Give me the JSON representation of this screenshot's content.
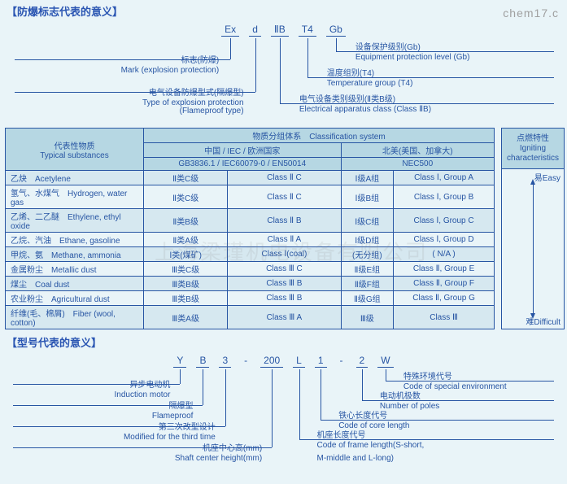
{
  "site_watermark": "chem17.c",
  "body_watermark": "上海梁瑾机电设备有限公司",
  "section1_title": "防爆标志代表的意义",
  "explosion": {
    "codes": [
      "Ex",
      "d",
      "ⅡB",
      "T4",
      "Gb"
    ],
    "left": [
      {
        "cn": "标志(防爆)",
        "en": "Mark (explosion protection)"
      },
      {
        "cn": "电气设备防爆型式(隔爆型)",
        "en": "Type of explosion protection"
      },
      {
        "cn": "",
        "en": "(Flameproof type)"
      }
    ],
    "right": [
      {
        "cn": "设备保护级别(Gb)",
        "en": "Equipment protection level (Gb)"
      },
      {
        "cn": "温度组别(T4)",
        "en": "Temperature group (T4)"
      },
      {
        "cn": "电气设备类别级别(Ⅱ类B级)",
        "en": "Electrical apparatus class (Class ⅡB)"
      }
    ]
  },
  "table": {
    "col_subst_cn": "代表性物质",
    "col_subst_en": "Typical substances",
    "col_class_cn": "物质分组体系",
    "col_class_en": "Classification system",
    "col_cn_iec_a": "中国 / IEC / 欧洲国家",
    "col_cn_iec_b": "GB3836.1 / IEC60079-0 / EN50014",
    "col_na_a": "北美(美国、加拿大)",
    "col_na_b": "NEC500",
    "col_ign_cn": "点燃特性",
    "col_ign_en": "Igniting",
    "col_ign_en2": "characteristics",
    "ign_easy": "易Easy",
    "ign_hard": "难Difficult",
    "rows": [
      {
        "cn": "乙炔",
        "en": "Acetylene",
        "c1": "Ⅱ类C级",
        "c2": "Class Ⅱ C",
        "n1": "Ⅰ级A组",
        "n2": "Class Ⅰ, Group A",
        "hi": 1
      },
      {
        "cn": "氢气、水煤气",
        "en": "Hydrogen, water gas",
        "c1": "Ⅱ类C级",
        "c2": "Class Ⅱ C",
        "n1": "Ⅰ级B组",
        "n2": "Class Ⅰ, Group B",
        "hi": 0
      },
      {
        "cn": "乙烯、二乙醚",
        "en": "Ethylene, ethyl oxide",
        "c1": "Ⅱ类B级",
        "c2": "Class Ⅱ B",
        "n1": "Ⅰ级C组",
        "n2": "Class Ⅰ, Group C",
        "hi": 1
      },
      {
        "cn": "乙烷、汽油",
        "en": "Ethane, gasoline",
        "c1": "Ⅱ类A级",
        "c2": "Class Ⅱ A",
        "n1": "Ⅰ级D组",
        "n2": "Class Ⅰ, Group D",
        "hi": 0
      },
      {
        "cn": "甲烷、氨",
        "en": "Methane, ammonia",
        "c1": "Ⅰ类(煤矿)",
        "c2": "Class Ⅰ(coal)",
        "n1": "(无分组)",
        "n2": "( N/A )",
        "hi": 1
      },
      {
        "cn": "金属粉尘",
        "en": "Metallic dust",
        "c1": "Ⅲ类C级",
        "c2": "Class Ⅲ C",
        "n1": "Ⅱ级E组",
        "n2": "Class Ⅱ, Group E",
        "hi": 0
      },
      {
        "cn": "煤尘",
        "en": "Coal dust",
        "c1": "Ⅲ类B级",
        "c2": "Class Ⅲ B",
        "n1": "Ⅱ级F组",
        "n2": "Class Ⅱ, Group F",
        "hi": 1
      },
      {
        "cn": "农业粉尘",
        "en": "Agricultural dust",
        "c1": "Ⅲ类B级",
        "c2": "Class Ⅲ B",
        "n1": "Ⅱ级G组",
        "n2": "Class Ⅱ, Group G",
        "hi": 0
      },
      {
        "cn": "纤维(毛、棉屑)",
        "en": "Fiber (wool, cotton)",
        "c1": "Ⅲ类A级",
        "c2": "Class Ⅲ A",
        "n1": "Ⅲ级",
        "n2": "Class Ⅲ",
        "hi": 1
      }
    ]
  },
  "section2_title": "型号代表的意义",
  "model": {
    "codes": [
      "Y",
      "B",
      "3",
      "-",
      "200",
      "L",
      "1",
      "-",
      "2",
      "W"
    ],
    "left": [
      {
        "cn": "异步电动机",
        "en": "Induction motor"
      },
      {
        "cn": "隔爆型",
        "en": "Flameproof"
      },
      {
        "cn": "第三次改型设计",
        "en": "Modified for the third time"
      },
      {
        "cn": "机座中心高(mm)",
        "en": "Shaft center height(mm)"
      }
    ],
    "right": [
      {
        "cn": "特殊环境代号",
        "en": "Code of special environment"
      },
      {
        "cn": "电动机极数",
        "en": "Number of poles"
      },
      {
        "cn": "铁心长度代号",
        "en": "Code of core length"
      },
      {
        "cn": "机座长度代号",
        "en": "Code of frame length(S-short,"
      },
      {
        "cn": "",
        "en": "M-middle and L-long)"
      }
    ]
  }
}
